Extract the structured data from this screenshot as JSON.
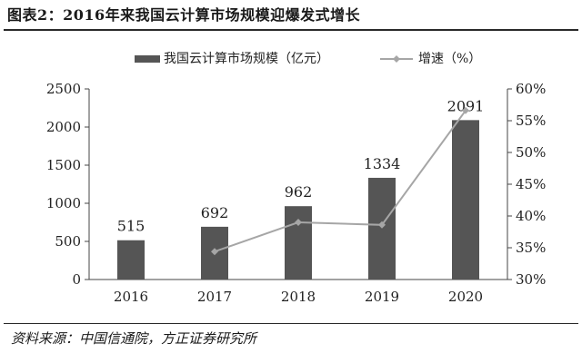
{
  "figure_title": "图表2：2016年来我国云计算市场规模迎爆发式增长",
  "source_note": "资料来源：中国信通院，方正证券研究所",
  "chart_data": {
    "type": "bar",
    "categories": [
      "2016",
      "2017",
      "2018",
      "2019",
      "2020"
    ],
    "series": [
      {
        "name": "我国云计算市场规模（亿元）",
        "type": "bar",
        "axis": "left",
        "values": [
          515,
          692,
          962,
          1334,
          2091
        ],
        "value_labels": [
          "515",
          "692",
          "962",
          "1334",
          "2091"
        ],
        "color": "#555555"
      },
      {
        "name": "增速（%）",
        "type": "line",
        "axis": "right",
        "values": [
          null,
          34.4,
          39.0,
          38.6,
          56.6
        ],
        "color": "#a6a6a6"
      }
    ],
    "ylim_left": [
      0,
      2500
    ],
    "yticks_left": [
      "0",
      "500",
      "1000",
      "1500",
      "2000",
      "2500"
    ],
    "ylim_right": [
      30,
      60
    ],
    "yticks_right": [
      "30%",
      "35%",
      "40%",
      "45%",
      "50%",
      "55%",
      "60%"
    ],
    "legend_position": "top",
    "grid": false
  }
}
